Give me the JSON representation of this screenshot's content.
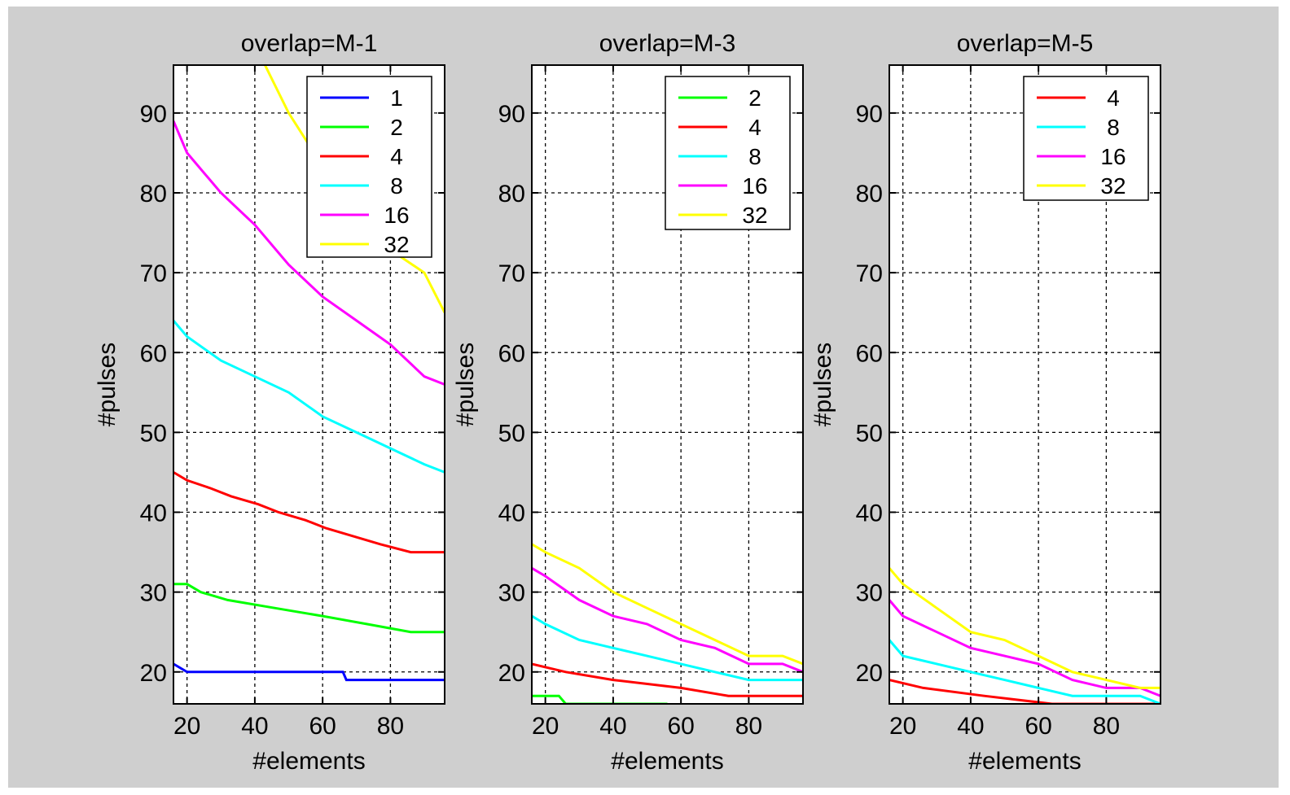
{
  "chart_data": [
    {
      "type": "line",
      "title": "overlap=M-1",
      "xlabel": "#elements",
      "ylabel": "#pulses",
      "xlim": [
        16,
        96
      ],
      "ylim": [
        16,
        96
      ],
      "xticks": [
        20,
        40,
        60,
        80
      ],
      "yticks": [
        20,
        30,
        40,
        50,
        60,
        70,
        80,
        90
      ],
      "grid": true,
      "legend_position": "top-right",
      "series": [
        {
          "name": "1",
          "color": "#0000ff",
          "x": [
            16,
            20,
            66,
            67,
            96
          ],
          "y": [
            21,
            20,
            20,
            19,
            19
          ]
        },
        {
          "name": "2",
          "color": "#00ff00",
          "x": [
            16,
            20,
            24,
            32,
            46,
            60,
            73,
            86,
            96
          ],
          "y": [
            31,
            31,
            30,
            29,
            28,
            27,
            26,
            25,
            25
          ]
        },
        {
          "name": "4",
          "color": "#ff0000",
          "x": [
            16,
            20,
            27,
            33,
            41,
            47,
            55,
            61,
            69,
            77,
            86,
            96
          ],
          "y": [
            45,
            44,
            43,
            42,
            41,
            40,
            39,
            38,
            37,
            36,
            35,
            35
          ]
        },
        {
          "name": "8",
          "color": "#00ffff",
          "x": [
            16,
            20,
            30,
            40,
            50,
            60,
            70,
            80,
            90,
            96
          ],
          "y": [
            64,
            62,
            59,
            57,
            55,
            52,
            50,
            48,
            46,
            45
          ]
        },
        {
          "name": "16",
          "color": "#ff00ff",
          "x": [
            16,
            20,
            30,
            40,
            50,
            60,
            70,
            80,
            90,
            96
          ],
          "y": [
            89,
            85,
            80,
            76,
            71,
            67,
            64,
            61,
            57,
            56
          ]
        },
        {
          "name": "32",
          "color": "#ffff00",
          "x": [
            43,
            50,
            56,
            68,
            76,
            90,
            96
          ],
          "y": [
            96,
            90,
            86,
            78,
            74,
            70,
            65
          ]
        }
      ]
    },
    {
      "type": "line",
      "title": "overlap=M-3",
      "xlabel": "#elements",
      "ylabel": "#pulses",
      "xlim": [
        16,
        96
      ],
      "ylim": [
        16,
        96
      ],
      "xticks": [
        20,
        40,
        60,
        80
      ],
      "yticks": [
        20,
        30,
        40,
        50,
        60,
        70,
        80,
        90
      ],
      "grid": true,
      "legend_position": "top-right",
      "series": [
        {
          "name": "2",
          "color": "#00ff00",
          "x": [
            16,
            24,
            26,
            56
          ],
          "y": [
            17,
            17,
            16,
            16
          ]
        },
        {
          "name": "4",
          "color": "#ff0000",
          "x": [
            16,
            26,
            40,
            60,
            74,
            96
          ],
          "y": [
            21,
            20,
            19,
            18,
            17,
            17
          ]
        },
        {
          "name": "8",
          "color": "#00ffff",
          "x": [
            16,
            20,
            30,
            40,
            50,
            60,
            70,
            80,
            96
          ],
          "y": [
            27,
            26,
            24,
            23,
            22,
            21,
            20,
            19,
            19
          ]
        },
        {
          "name": "16",
          "color": "#ff00ff",
          "x": [
            16,
            20,
            30,
            40,
            50,
            60,
            70,
            80,
            90,
            96
          ],
          "y": [
            33,
            32,
            29,
            27,
            26,
            24,
            23,
            21,
            21,
            20
          ]
        },
        {
          "name": "32",
          "color": "#ffff00",
          "x": [
            16,
            20,
            30,
            40,
            50,
            60,
            70,
            80,
            90,
            96
          ],
          "y": [
            36,
            35,
            33,
            30,
            28,
            26,
            24,
            22,
            22,
            21
          ]
        }
      ]
    },
    {
      "type": "line",
      "title": "overlap=M-5",
      "xlabel": "#elements",
      "ylabel": "#pulses",
      "xlim": [
        16,
        96
      ],
      "ylim": [
        16,
        96
      ],
      "xticks": [
        20,
        40,
        60,
        80
      ],
      "yticks": [
        20,
        30,
        40,
        50,
        60,
        70,
        80,
        90
      ],
      "grid": true,
      "legend_position": "top-right",
      "series": [
        {
          "name": "4",
          "color": "#ff0000",
          "x": [
            16,
            26,
            44,
            64,
            84,
            96
          ],
          "y": [
            19,
            18,
            17,
            16,
            16,
            16
          ]
        },
        {
          "name": "8",
          "color": "#00ffff",
          "x": [
            16,
            20,
            30,
            40,
            50,
            60,
            70,
            80,
            90,
            96
          ],
          "y": [
            24,
            22,
            21,
            20,
            19,
            18,
            17,
            17,
            17,
            16
          ]
        },
        {
          "name": "16",
          "color": "#ff00ff",
          "x": [
            16,
            20,
            30,
            40,
            50,
            60,
            70,
            80,
            90,
            96
          ],
          "y": [
            29,
            27,
            25,
            23,
            22,
            21,
            19,
            18,
            18,
            17
          ]
        },
        {
          "name": "32",
          "color": "#ffff00",
          "x": [
            16,
            20,
            30,
            40,
            50,
            60,
            70,
            80,
            90,
            96
          ],
          "y": [
            33,
            31,
            28,
            25,
            24,
            22,
            20,
            19,
            18,
            18
          ]
        }
      ]
    }
  ]
}
